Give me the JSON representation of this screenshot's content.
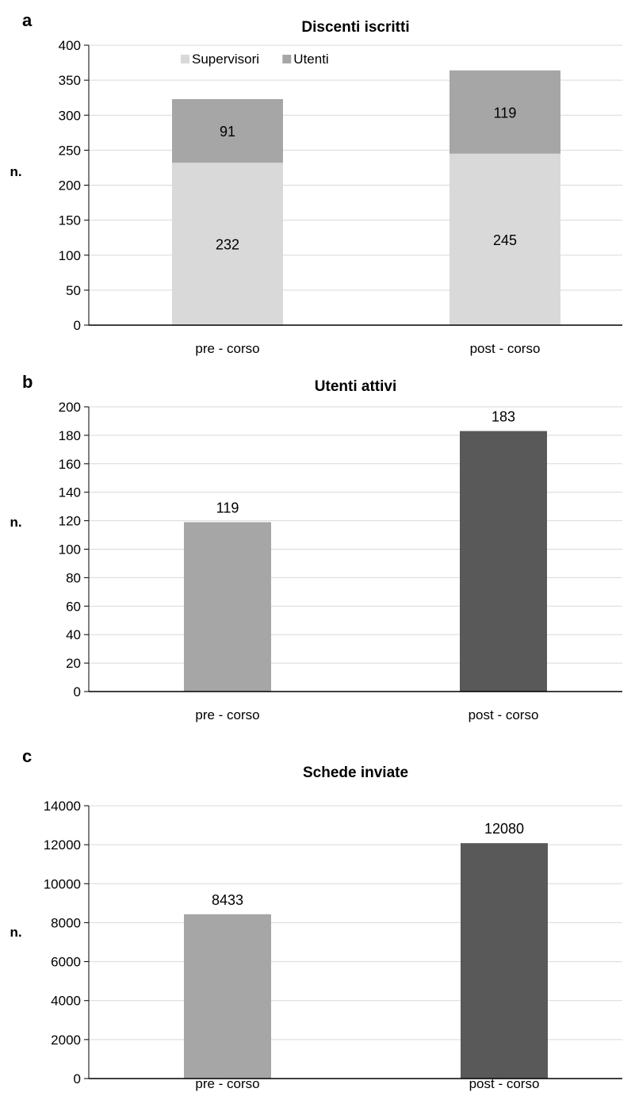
{
  "chart_data": [
    {
      "panel": "a",
      "type": "bar",
      "stacked": true,
      "title": "Discenti iscritti",
      "ylabel": "n.",
      "xlabel": "",
      "categories": [
        "pre - corso",
        "post - corso"
      ],
      "series": [
        {
          "name": "Supervisori",
          "values": [
            232,
            245
          ],
          "color": "#d9d9d9"
        },
        {
          "name": "Utenti",
          "values": [
            91,
            119
          ],
          "color": "#a6a6a6"
        }
      ],
      "ylim": [
        0,
        400
      ],
      "yticks": [
        0,
        50,
        100,
        150,
        200,
        250,
        300,
        350,
        400
      ],
      "grid": true,
      "legend": "top-left"
    },
    {
      "panel": "b",
      "type": "bar",
      "title": "Utenti attivi",
      "ylabel": "n.",
      "xlabel": "",
      "categories": [
        "pre - corso",
        "post - corso"
      ],
      "values": [
        119,
        183
      ],
      "colors": [
        "#a6a6a6",
        "#595959"
      ],
      "ylim": [
        0,
        200
      ],
      "yticks": [
        0,
        20,
        40,
        60,
        80,
        100,
        120,
        140,
        160,
        180,
        200
      ],
      "grid": true
    },
    {
      "panel": "c",
      "type": "bar",
      "title": "Schede inviate",
      "ylabel": "n.",
      "xlabel": "",
      "categories": [
        "pre - corso",
        "post - corso"
      ],
      "values": [
        8433,
        12080
      ],
      "colors": [
        "#a6a6a6",
        "#595959"
      ],
      "ylim": [
        0,
        14000
      ],
      "yticks": [
        0,
        2000,
        4000,
        6000,
        8000,
        10000,
        12000,
        14000
      ],
      "grid": true
    }
  ]
}
